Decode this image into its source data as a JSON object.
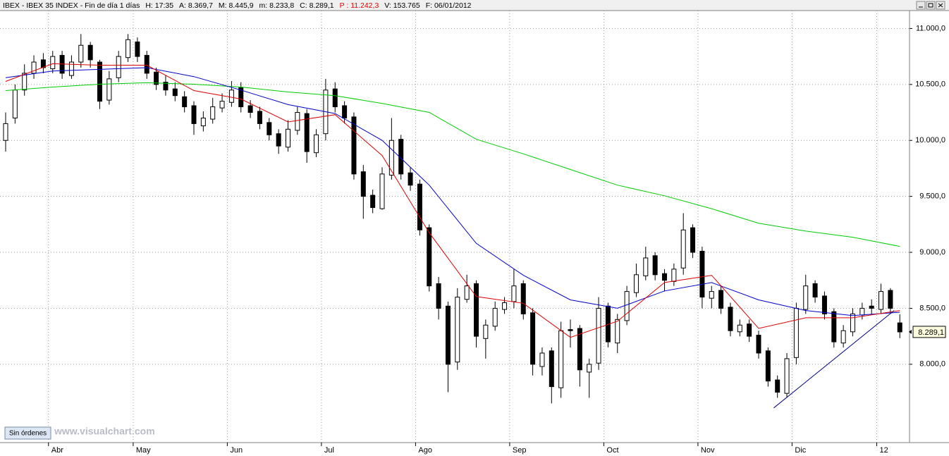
{
  "header": [
    "IBEX - IBEX 35 INDEX - Fin de día 1 días",
    "H: 17:35",
    "A: 8.369,7",
    "M: 8.445,9",
    "m: 8.233,8",
    "C: 8.289,1",
    "P : 11.242,3",
    "V: 153.765",
    "F: 06/01/2012"
  ],
  "orders_button": "Sin órdenes",
  "watermark": "www.visualchart.com",
  "chart_data": {
    "type": "candlestick",
    "categories": [
      null,
      null,
      null,
      null,
      null,
      "Abr",
      null,
      null,
      null,
      null,
      null,
      null,
      null,
      null,
      "May",
      null,
      null,
      null,
      null,
      null,
      null,
      null,
      null,
      null,
      "Jun",
      null,
      null,
      null,
      null,
      null,
      null,
      null,
      null,
      null,
      "Jul",
      null,
      null,
      null,
      null,
      null,
      null,
      null,
      null,
      null,
      "Ago",
      null,
      null,
      null,
      null,
      null,
      null,
      null,
      null,
      null,
      "Sep",
      null,
      null,
      null,
      null,
      null,
      null,
      null,
      null,
      null,
      "Oct",
      null,
      null,
      null,
      null,
      null,
      null,
      null,
      null,
      null,
      "Nov",
      null,
      null,
      null,
      null,
      null,
      null,
      null,
      null,
      null,
      "Dic",
      null,
      null,
      null,
      null,
      null,
      null,
      null,
      null,
      "12",
      null,
      null
    ],
    "open": [
      10000,
      10200,
      10450,
      10600,
      10720,
      10640,
      10760,
      10580,
      10700,
      10850,
      10700,
      10360,
      10560,
      10740,
      10880,
      10760,
      10610,
      10520,
      10460,
      10390,
      10310,
      10130,
      10190,
      10290,
      10340,
      10470,
      10310,
      10260,
      10160,
      10060,
      9940,
      10090,
      10240,
      9890,
      10060,
      10460,
      10310,
      10210,
      9720,
      9510,
      9390,
      9690,
      10010,
      9710,
      9610,
      9220,
      8720,
      8520,
      8020,
      8580,
      8720,
      8230,
      8340,
      8490,
      8560,
      8720,
      8460,
      7980,
      8120,
      7790,
      8310,
      8320,
      7930,
      8010,
      8520,
      8190,
      8390,
      8640,
      8790,
      8970,
      8810,
      8740,
      8860,
      9220,
      9010,
      8590,
      8660,
      8510,
      8290,
      8360,
      8260,
      8120,
      7860,
      7740,
      8060,
      8490,
      8720,
      8610,
      8470,
      8190,
      8290,
      8440,
      8520,
      8490,
      8660,
      8369.7
    ],
    "high": [
      10250,
      10500,
      10680,
      10760,
      10780,
      10800,
      10800,
      10760,
      10950,
      10880,
      10720,
      10620,
      10800,
      10950,
      10920,
      10800,
      10650,
      10580,
      10520,
      10440,
      10350,
      10260,
      10380,
      10420,
      10530,
      10520,
      10360,
      10300,
      10200,
      10100,
      10180,
      10300,
      10280,
      10100,
      10550,
      10520,
      10350,
      10250,
      9780,
      9560,
      9760,
      10200,
      10050,
      9760,
      9650,
      9250,
      8780,
      8560,
      8680,
      8800,
      8750,
      8400,
      8560,
      8600,
      8850,
      8750,
      8500,
      8150,
      8150,
      8380,
      8400,
      8350,
      8050,
      8600,
      8550,
      8450,
      8700,
      8900,
      9050,
      9000,
      8850,
      8900,
      9350,
      9250,
      9050,
      8700,
      8700,
      8550,
      8400,
      8400,
      8300,
      8150,
      7900,
      8100,
      8550,
      8800,
      8750,
      8650,
      8500,
      8350,
      8500,
      8550,
      8580,
      8720,
      8680,
      8445.9
    ],
    "low": [
      9900,
      10150,
      10400,
      10550,
      10600,
      10600,
      10550,
      10550,
      10650,
      10650,
      10280,
      10320,
      10520,
      10700,
      10700,
      10550,
      10450,
      10400,
      10350,
      10250,
      10050,
      10080,
      10150,
      10250,
      10300,
      10250,
      10200,
      10100,
      10000,
      9880,
      9900,
      10050,
      9800,
      9850,
      10000,
      10250,
      10150,
      9650,
      9300,
      9350,
      9380,
      9650,
      9650,
      9550,
      9150,
      8650,
      8400,
      7750,
      7950,
      8550,
      8150,
      8050,
      8300,
      8450,
      8500,
      8400,
      7900,
      7900,
      7650,
      7700,
      8150,
      7800,
      7700,
      7950,
      8150,
      8100,
      8350,
      8600,
      8750,
      8750,
      8650,
      8700,
      8800,
      8950,
      8500,
      8500,
      8450,
      8250,
      8250,
      8200,
      8050,
      7800,
      7700,
      7700,
      8000,
      8450,
      8550,
      8400,
      8150,
      8150,
      8250,
      8400,
      8450,
      8450,
      8450,
      8233.8
    ],
    "close": [
      10150,
      10450,
      10600,
      10700,
      10650,
      10750,
      10600,
      10700,
      10850,
      10720,
      10350,
      10550,
      10750,
      10900,
      10750,
      10600,
      10500,
      10450,
      10400,
      10300,
      10150,
      10200,
      10300,
      10350,
      10450,
      10300,
      10250,
      10150,
      10050,
      9950,
      10100,
      10250,
      9900,
      10050,
      10450,
      10300,
      10200,
      9700,
      9500,
      9400,
      9700,
      10000,
      9700,
      9600,
      9200,
      8700,
      8500,
      8000,
      8600,
      8700,
      8250,
      8350,
      8500,
      8550,
      8700,
      8450,
      8000,
      8100,
      7800,
      8300,
      8300,
      7950,
      8000,
      8500,
      8200,
      8400,
      8650,
      8800,
      8950,
      8800,
      8750,
      8850,
      9200,
      9000,
      8600,
      8650,
      8500,
      8300,
      8350,
      8250,
      8100,
      7850,
      7750,
      8050,
      8500,
      8700,
      8600,
      8450,
      8200,
      8300,
      8450,
      8500,
      8500,
      8650,
      8500,
      8289.1
    ],
    "lines": [
      {
        "color": "#00cc00",
        "x": [
          0,
          5,
          10,
          15,
          20,
          25,
          30,
          35,
          40,
          45,
          50,
          55,
          60,
          65,
          70,
          75,
          80,
          85,
          90,
          95
        ],
        "values": [
          10445,
          10477,
          10502,
          10515,
          10502,
          10477,
          10433,
          10400,
          10330,
          10250,
          10010,
          9880,
          9740,
          9600,
          9505,
          9390,
          9260,
          9190,
          9135,
          9053
        ]
      },
      {
        "color": "#0000cc",
        "x": [
          0,
          5,
          10,
          15,
          20,
          25,
          30,
          35,
          40,
          45,
          50,
          55,
          60,
          65,
          70,
          75,
          80,
          85,
          90,
          95
        ],
        "values": [
          10560,
          10620,
          10635,
          10650,
          10570,
          10450,
          10320,
          10240,
          10000,
          9600,
          9080,
          8795,
          8575,
          8500,
          8655,
          8730,
          8575,
          8480,
          8435,
          8465
        ]
      },
      {
        "color": "#dd0000",
        "x": [
          0,
          5,
          10,
          15,
          20,
          25,
          30,
          35,
          40,
          45,
          50,
          55,
          60,
          65,
          70,
          75,
          80,
          85,
          90,
          95
        ],
        "values": [
          10527,
          10685,
          10672,
          10672,
          10445,
          10370,
          10165,
          10230,
          9865,
          9175,
          8605,
          8545,
          8240,
          8385,
          8730,
          8795,
          8320,
          8415,
          8415,
          8480
        ]
      }
    ],
    "trendline": {
      "color": "#000080",
      "x": [
        81.6,
        94.4
      ],
      "values": [
        7610,
        8480
      ]
    },
    "last_price": {
      "value": 8289.1,
      "label": "8.289,1"
    },
    "ylim": [
      7300,
      11160
    ],
    "yticks": [
      {
        "value": 8000,
        "label": "8.000,0"
      },
      {
        "value": 8500,
        "label": "8.500,0"
      },
      {
        "value": 9000,
        "label": "9.000,0"
      },
      {
        "value": 9500,
        "label": "9.500,0"
      },
      {
        "value": 10000,
        "label": "10.000,0"
      },
      {
        "value": 10500,
        "label": "10.500,0"
      },
      {
        "value": 11000,
        "label": "11.000,0"
      }
    ],
    "grid": true
  }
}
